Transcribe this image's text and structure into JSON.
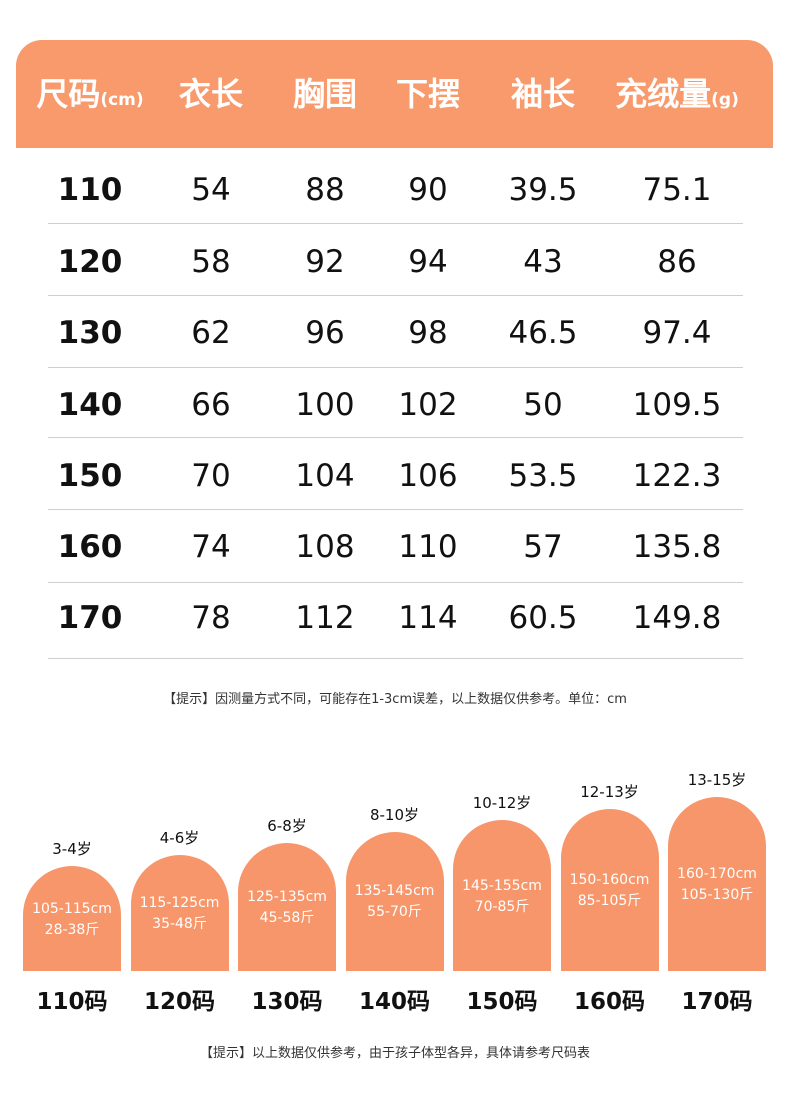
{
  "table": {
    "header": [
      {
        "text": "尺码",
        "unit": "(cm)"
      },
      {
        "text": "衣长"
      },
      {
        "text": "胸围"
      },
      {
        "text": "下摆"
      },
      {
        "text": "袖长"
      },
      {
        "text": "充绒量",
        "unit": "(g)"
      }
    ],
    "rows": [
      [
        "110",
        "54",
        "88",
        "90",
        "39.5",
        "75.1"
      ],
      [
        "120",
        "58",
        "92",
        "94",
        "43",
        "86"
      ],
      [
        "130",
        "62",
        "96",
        "98",
        "46.5",
        "97.4"
      ],
      [
        "140",
        "66",
        "100",
        "102",
        "50",
        "109.5"
      ],
      [
        "150",
        "70",
        "104",
        "106",
        "53.5",
        "122.3"
      ],
      [
        "160",
        "74",
        "108",
        "110",
        "57",
        "135.8"
      ],
      [
        "170",
        "78",
        "112",
        "114",
        "60.5",
        "149.8"
      ]
    ],
    "note": "【提示】因测量方式不同，可能存在1-3cm误差，以上数据仅供参考。单位：cm"
  },
  "size_cards": {
    "cards": [
      {
        "age": "3-4岁",
        "height": "105-115cm",
        "weight": "28-38斤",
        "size": "110码"
      },
      {
        "age": "4-6岁",
        "height": "115-125cm",
        "weight": "35-48斤",
        "size": "120码"
      },
      {
        "age": "6-8岁",
        "height": "125-135cm",
        "weight": "45-58斤",
        "size": "130码"
      },
      {
        "age": "8-10岁",
        "height": "135-145cm",
        "weight": "55-70斤",
        "size": "140码"
      },
      {
        "age": "10-12岁",
        "height": "145-155cm",
        "weight": "70-85斤",
        "size": "150码"
      },
      {
        "age": "12-13岁",
        "height": "150-160cm",
        "weight": "85-105斤",
        "size": "160码"
      },
      {
        "age": "13-15岁",
        "height": "160-170cm",
        "weight": "105-130斤",
        "size": "170码"
      }
    ],
    "note": "【提示】以上数据仅供参考，由于孩子体型各异，具体请参考尺码表"
  }
}
